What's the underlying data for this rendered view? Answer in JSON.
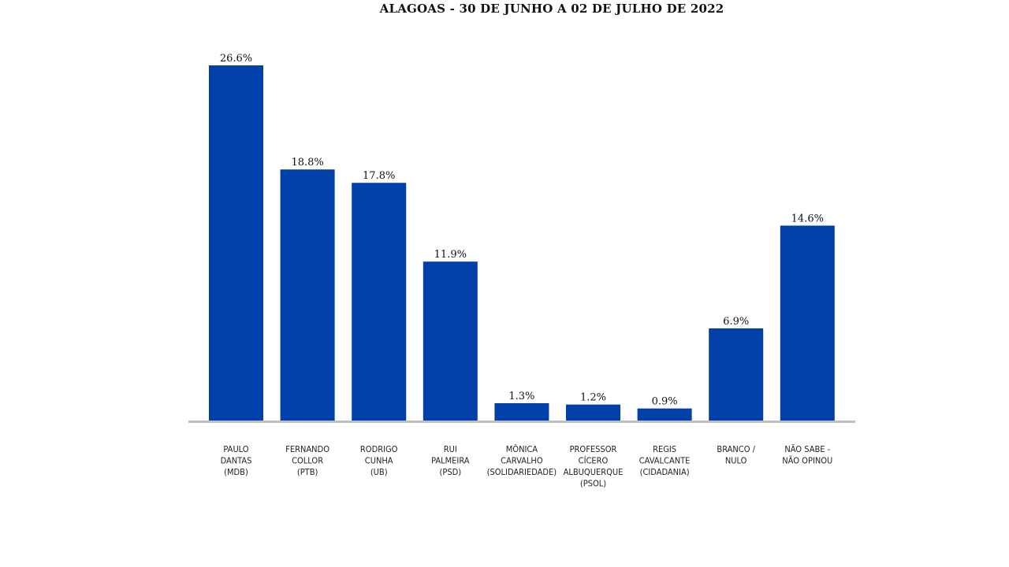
{
  "chart_data": {
    "type": "bar",
    "title": "ALAGOAS - 30 DE JUNHO A 02 DE JULHO DE 2022",
    "xlabel": "",
    "ylabel": "",
    "ylim": [
      0,
      26.6
    ],
    "grid": false,
    "legend": "none",
    "bar_color": "#0040A8",
    "axis_color": "#BFBFBF",
    "categories": [
      [
        "PAULO",
        "DANTAS",
        "(MDB)"
      ],
      [
        "FERNANDO",
        "COLLOR",
        "(PTB)"
      ],
      [
        "RODRIGO",
        "CUNHA",
        "(UB)"
      ],
      [
        "RUI",
        "PALMEIRA",
        "(PSD)"
      ],
      [
        "MÔNICA",
        "CARVALHO",
        "(SOLIDARIEDADE)"
      ],
      [
        "PROFESSOR",
        "CÍCERO",
        "ALBUQUERQUE",
        "(PSOL)"
      ],
      [
        "REGIS",
        "CAVALCANTE",
        "(CIDADANIA)"
      ],
      [
        "BRANCO /",
        "NULO"
      ],
      [
        "NÃO SABE  -",
        "NÃO OPINOU"
      ]
    ],
    "values": [
      26.6,
      18.8,
      17.8,
      11.9,
      1.3,
      1.2,
      0.9,
      6.9,
      14.6
    ],
    "value_labels": [
      "26.6%",
      "18.8%",
      "17.8%",
      "11.9%",
      "1.3%",
      "1.2%",
      "0.9%",
      "6.9%",
      "14.6%"
    ]
  }
}
